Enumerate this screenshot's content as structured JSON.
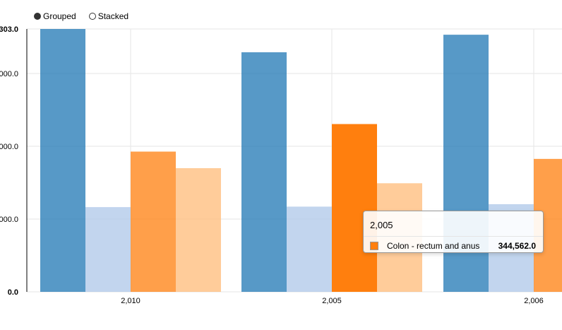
{
  "legend": {
    "options": [
      {
        "label": "Grouped",
        "selected": true
      },
      {
        "label": "Stacked",
        "selected": false
      }
    ]
  },
  "tooltip": {
    "header": "2,005",
    "series_name": "Colon - rectum and anus",
    "value": "344,562.0",
    "color": "#ff7f0e"
  },
  "chart_data": {
    "type": "bar",
    "mode": "grouped",
    "categories": [
      "2,010",
      "2,005",
      "2,006"
    ],
    "y_ticks": [
      "0.0",
      "000.0",
      "000.0",
      "000.0",
      "303.0"
    ],
    "ylim": [
      0,
      539803
    ],
    "grid": true,
    "highlighted": {
      "category": "2,005",
      "series_index": 2
    },
    "series": [
      {
        "color": "#1f77b4",
        "values": [
          539803,
          492000,
          528000
        ]
      },
      {
        "color": "#aec7e8",
        "values": [
          174000,
          175000,
          180000
        ]
      },
      {
        "name": "Colon - rectum and anus",
        "color": "#ff7f0e",
        "values": [
          288000,
          344562,
          273000
        ]
      },
      {
        "color": "#ffbb78",
        "values": [
          254000,
          223000,
          null
        ]
      }
    ]
  }
}
